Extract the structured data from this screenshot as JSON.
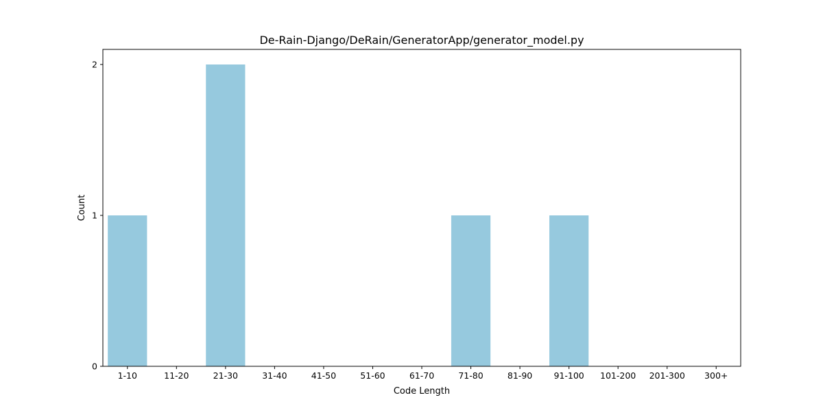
{
  "chart_data": {
    "type": "bar",
    "title": "De-Rain-Django/DeRain/GeneratorApp/generator_model.py",
    "xlabel": "Code Length",
    "ylabel": "Count",
    "categories": [
      "1-10",
      "11-20",
      "21-30",
      "31-40",
      "41-50",
      "51-60",
      "61-70",
      "71-80",
      "81-90",
      "91-100",
      "101-200",
      "201-300",
      "300+"
    ],
    "values": [
      1,
      0,
      2,
      0,
      0,
      0,
      0,
      1,
      0,
      1,
      0,
      0,
      0
    ],
    "ylim": [
      0,
      2.1
    ],
    "yticks": [
      0,
      1,
      2
    ],
    "grid": false,
    "bar_color": "#96c9de"
  }
}
